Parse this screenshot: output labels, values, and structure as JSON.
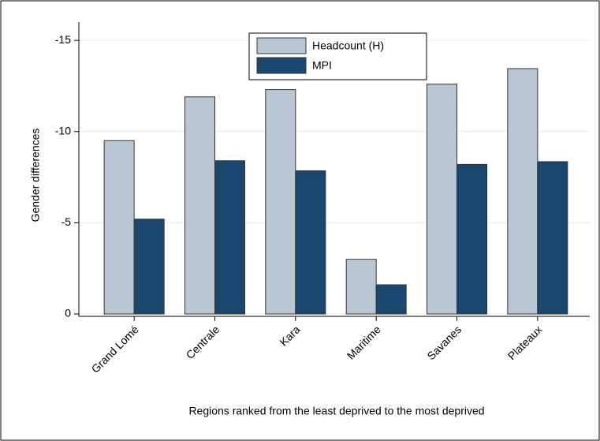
{
  "chart_data": {
    "type": "bar",
    "y_label": "Gender differences",
    "x_label": "Regions ranked from the least deprived to the most deprived",
    "categories": [
      "Grand Lomé",
      "Centrale",
      "Kara",
      "Maritime",
      "Savanes",
      "Plateaux"
    ],
    "series": [
      {
        "name": "Headcount (H)",
        "color": "#b9c7d4",
        "values": [
          -9.5,
          -11.9,
          -12.3,
          -3.0,
          -12.6,
          -13.45
        ]
      },
      {
        "name": "MPI",
        "color": "#1a476f",
        "values": [
          -5.2,
          -8.4,
          -7.85,
          -1.6,
          -8.2,
          -8.35
        ]
      }
    ],
    "ylim": [
      0,
      -16
    ],
    "yticks": [
      0,
      -5,
      -10,
      -15
    ],
    "grid": true
  }
}
